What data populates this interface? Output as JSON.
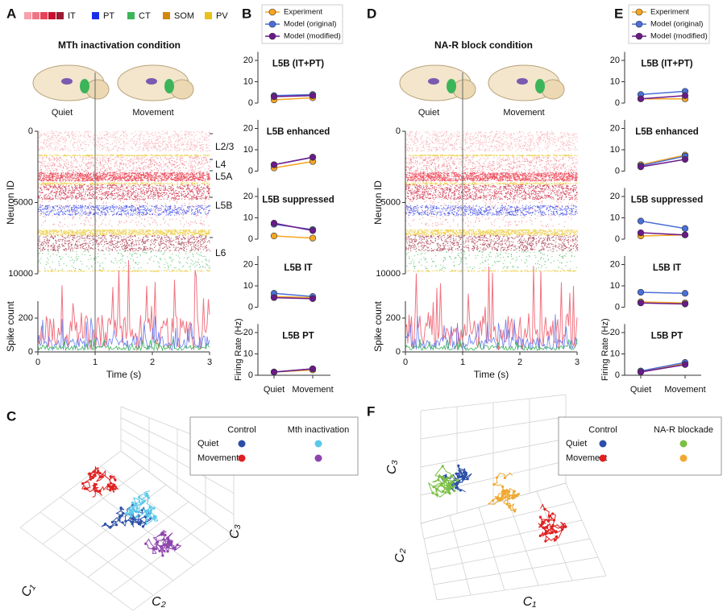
{
  "panel_labels": [
    "A",
    "B",
    "C",
    "D",
    "E",
    "F"
  ],
  "cell_types": [
    {
      "name": "IT",
      "colors": [
        "#f7a1ab",
        "#f07583",
        "#e84258",
        "#c8102e",
        "#9b1b30"
      ]
    },
    {
      "name": "PT",
      "colors": [
        "#1a2ee8"
      ]
    },
    {
      "name": "CT",
      "colors": [
        "#3cb55a"
      ]
    },
    {
      "name": "SOM",
      "colors": [
        "#d4870f"
      ]
    },
    {
      "name": "PV",
      "colors": [
        "#e8c21a"
      ]
    }
  ],
  "headers": [
    {
      "title": "MTh inactivation condition",
      "left": "Quiet",
      "right": "Movement"
    },
    {
      "title": "NA-R block condition",
      "left": "Quiet",
      "right": "Movement"
    }
  ],
  "chart_data": [
    {
      "type": "raster",
      "ylabel": "Neuron ID",
      "ylim": [
        0,
        10000
      ],
      "yticks": [
        0,
        5000,
        10000
      ],
      "y_inverted": true,
      "xlim": [
        0,
        3
      ],
      "marker_x": 1,
      "layer_labels": [
        "L2/3",
        "L4",
        "L5A",
        "L5B",
        "L6"
      ]
    },
    {
      "type": "spikes",
      "ylabel": "Spike count",
      "xlabel": "Time (s)",
      "ylim": [
        0,
        300
      ],
      "yticks": [
        0,
        200
      ],
      "xlim": [
        0,
        3
      ],
      "xticks": [
        0,
        1,
        2,
        3
      ],
      "marker_x": 1
    },
    {
      "type": "line",
      "title": "L5B (IT+PT)",
      "ylim": [
        0,
        24
      ],
      "yticks": [
        0,
        10,
        20
      ],
      "series": [
        {
          "name": "Experiment",
          "color": "#f5a623",
          "values": [
            1.5,
            2.5
          ]
        },
        {
          "name": "Model (original)",
          "color": "#4a6fd6",
          "values": [
            3.5,
            4
          ]
        },
        {
          "name": "Model (modified)",
          "color": "#6a1a8a",
          "values": [
            3,
            3.5
          ]
        }
      ]
    },
    {
      "type": "line",
      "title": "L5B enhanced",
      "ylim": [
        0,
        24
      ],
      "yticks": [
        0,
        10,
        20
      ],
      "series": [
        {
          "name": "Experiment",
          "color": "#f5a623",
          "values": [
            1.5,
            4.5
          ]
        },
        {
          "name": "Model (original)",
          "color": "#4a6fd6",
          "values": [
            3,
            6.5
          ]
        },
        {
          "name": "Model (modified)",
          "color": "#6a1a8a",
          "values": [
            3,
            6.5
          ]
        }
      ]
    },
    {
      "type": "line",
      "title": "L5B suppressed",
      "ylim": [
        0,
        24
      ],
      "yticks": [
        0,
        10,
        20
      ],
      "series": [
        {
          "name": "Experiment",
          "color": "#f5a623",
          "values": [
            1.5,
            0.5
          ]
        },
        {
          "name": "Model (original)",
          "color": "#4a6fd6",
          "values": [
            7,
            4.5
          ]
        },
        {
          "name": "Model (modified)",
          "color": "#6a1a8a",
          "values": [
            7.5,
            4
          ]
        }
      ]
    },
    {
      "type": "line",
      "title": "L5B IT",
      "ylim": [
        0,
        24
      ],
      "yticks": [
        0,
        10,
        20
      ],
      "series": [
        {
          "name": "Experiment",
          "color": "#f5a623",
          "values": [
            5,
            4.5
          ]
        },
        {
          "name": "Model (original)",
          "color": "#4a6fd6",
          "values": [
            6.5,
            5
          ]
        },
        {
          "name": "Model (modified)",
          "color": "#6a1a8a",
          "values": [
            4.5,
            4
          ]
        }
      ]
    },
    {
      "type": "line",
      "title": "L5B PT",
      "ylabel": "Firing Rate (Hz)",
      "categories": [
        "Quiet",
        "Movement"
      ],
      "ylim": [
        0,
        24
      ],
      "yticks": [
        0,
        10,
        20
      ],
      "series": [
        {
          "name": "Experiment",
          "color": "#f5a623",
          "values": [
            1.5,
            2.5
          ]
        },
        {
          "name": "Model (original)",
          "color": "#4a6fd6",
          "values": [
            1.5,
            3
          ]
        },
        {
          "name": "Model (modified)",
          "color": "#6a1a8a",
          "values": [
            1.5,
            3
          ]
        }
      ]
    },
    {
      "type": "raster",
      "ylabel": "Neuron ID",
      "ylim": [
        0,
        10000
      ],
      "yticks": [
        0,
        5000,
        10000
      ],
      "y_inverted": true,
      "xlim": [
        0,
        3
      ],
      "marker_x": 1
    },
    {
      "type": "spikes",
      "ylabel": "Spike count",
      "xlabel": "Time (s)",
      "ylim": [
        0,
        300
      ],
      "yticks": [
        0,
        200
      ],
      "xlim": [
        0,
        3
      ],
      "xticks": [
        0,
        1,
        2,
        3
      ],
      "marker_x": 1
    },
    {
      "type": "line",
      "title": "L5B (IT+PT)",
      "ylim": [
        0,
        24
      ],
      "yticks": [
        0,
        10,
        20
      ],
      "series": [
        {
          "name": "Experiment",
          "color": "#f5a623",
          "values": [
            2,
            2
          ]
        },
        {
          "name": "Model (original)",
          "color": "#4a6fd6",
          "values": [
            4,
            5.5
          ]
        },
        {
          "name": "Model (modified)",
          "color": "#6a1a8a",
          "values": [
            2,
            3.5
          ]
        }
      ]
    },
    {
      "type": "line",
      "title": "L5B enhanced",
      "ylim": [
        0,
        24
      ],
      "yticks": [
        0,
        10,
        20
      ],
      "series": [
        {
          "name": "Experiment",
          "color": "#f5a623",
          "values": [
            3,
            7.5
          ]
        },
        {
          "name": "Model (original)",
          "color": "#4a6fd6",
          "values": [
            2.5,
            7
          ]
        },
        {
          "name": "Model (modified)",
          "color": "#6a1a8a",
          "values": [
            2,
            5.5
          ]
        }
      ]
    },
    {
      "type": "line",
      "title": "L5B suppressed",
      "ylim": [
        0,
        24
      ],
      "yticks": [
        0,
        10,
        20
      ],
      "series": [
        {
          "name": "Experiment",
          "color": "#f5a623",
          "values": [
            1.5,
            2
          ]
        },
        {
          "name": "Model (original)",
          "color": "#4a6fd6",
          "values": [
            8.5,
            5
          ]
        },
        {
          "name": "Model (modified)",
          "color": "#6a1a8a",
          "values": [
            3,
            2
          ]
        }
      ]
    },
    {
      "type": "line",
      "title": "L5B IT",
      "ylim": [
        0,
        24
      ],
      "yticks": [
        0,
        10,
        20
      ],
      "series": [
        {
          "name": "Experiment",
          "color": "#f5a623",
          "values": [
            2.5,
            2
          ]
        },
        {
          "name": "Model (original)",
          "color": "#4a6fd6",
          "values": [
            7,
            6.5
          ]
        },
        {
          "name": "Model (modified)",
          "color": "#6a1a8a",
          "values": [
            2,
            1.5
          ]
        }
      ]
    },
    {
      "type": "line",
      "title": "L5B PT",
      "ylabel": "Firing Rate (Hz)",
      "categories": [
        "Quiet",
        "Movement"
      ],
      "ylim": [
        0,
        24
      ],
      "yticks": [
        0,
        10,
        20
      ],
      "series": [
        {
          "name": "Experiment",
          "color": "#f5a623",
          "values": [
            1.5,
            5.5
          ]
        },
        {
          "name": "Model (original)",
          "color": "#4a6fd6",
          "values": [
            2,
            6
          ]
        },
        {
          "name": "Model (modified)",
          "color": "#6a1a8a",
          "values": [
            1.5,
            5
          ]
        }
      ]
    },
    {
      "type": "trajectory3d",
      "legend": {
        "columns": [
          "Control",
          "Mth inactivation"
        ],
        "rows": [
          "Quiet",
          "Movement"
        ],
        "colors": [
          [
            "#2b4fa8",
            "#5bc8ea"
          ],
          [
            "#e02020",
            "#8e44ad"
          ]
        ]
      },
      "axis_labels": [
        "C₁",
        "C₂",
        "C₃"
      ]
    },
    {
      "type": "trajectory3d",
      "legend": {
        "columns": [
          "Control",
          "NA-R blockade"
        ],
        "rows": [
          "Quiet",
          "Movement"
        ],
        "colors": [
          [
            "#2b4fa8",
            "#7cc043"
          ],
          [
            "#e02020",
            "#f0a830"
          ]
        ]
      },
      "axis_labels": [
        "C₁",
        "C₂",
        "C₃"
      ]
    }
  ]
}
